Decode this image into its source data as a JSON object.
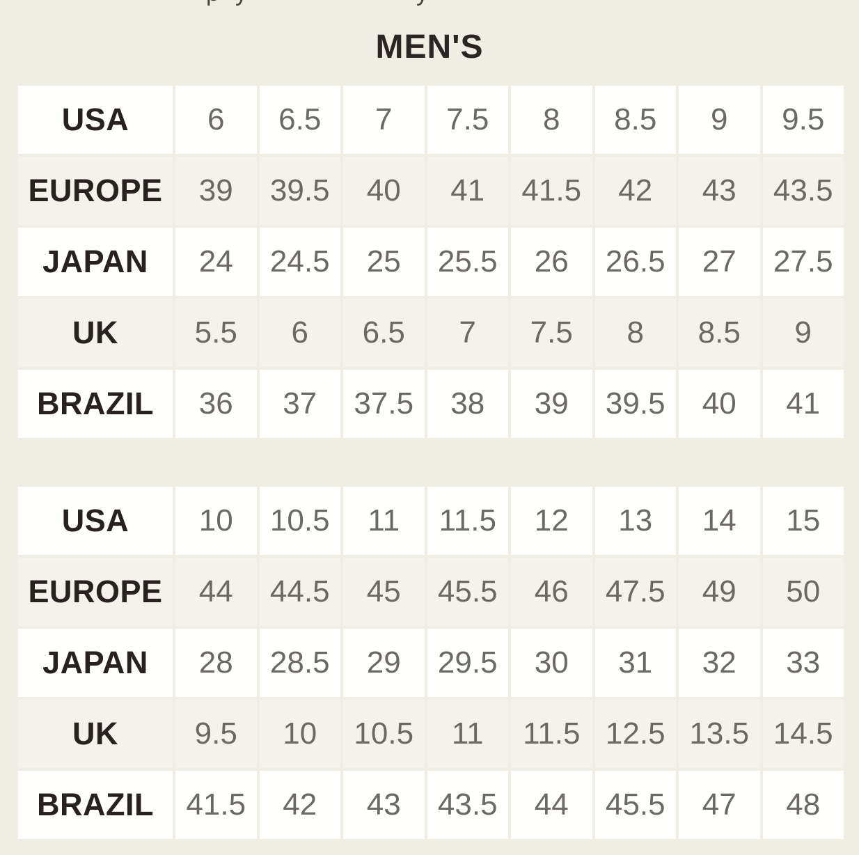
{
  "title": "MEN'S",
  "top_cropped_glyphs": [
    "p",
    "y",
    "y"
  ],
  "colors": {
    "page_background": "#f0ede4",
    "white_row": "#fffffe",
    "tint_row": "#f5f2eb",
    "label_text": "#272220",
    "value_text": "#6c6965"
  },
  "chart_data": [
    {
      "type": "table",
      "title": "MEN'S",
      "rows": [
        {
          "label": "USA",
          "values": [
            "6",
            "6.5",
            "7",
            "7.5",
            "8",
            "8.5",
            "9",
            "9.5"
          ]
        },
        {
          "label": "EUROPE",
          "values": [
            "39",
            "39.5",
            "40",
            "41",
            "41.5",
            "42",
            "43",
            "43.5"
          ]
        },
        {
          "label": "JAPAN",
          "values": [
            "24",
            "24.5",
            "25",
            "25.5",
            "26",
            "26.5",
            "27",
            "27.5"
          ]
        },
        {
          "label": "UK",
          "values": [
            "5.5",
            "6",
            "6.5",
            "7",
            "7.5",
            "8",
            "8.5",
            "9"
          ]
        },
        {
          "label": "BRAZIL",
          "values": [
            "36",
            "37",
            "37.5",
            "38",
            "39",
            "39.5",
            "40",
            "41"
          ]
        }
      ]
    },
    {
      "type": "table",
      "title": "",
      "rows": [
        {
          "label": "USA",
          "values": [
            "10",
            "10.5",
            "11",
            "11.5",
            "12",
            "13",
            "14",
            "15"
          ]
        },
        {
          "label": "EUROPE",
          "values": [
            "44",
            "44.5",
            "45",
            "45.5",
            "46",
            "47.5",
            "49",
            "50"
          ]
        },
        {
          "label": "JAPAN",
          "values": [
            "28",
            "28.5",
            "29",
            "29.5",
            "30",
            "31",
            "32",
            "33"
          ]
        },
        {
          "label": "UK",
          "values": [
            "9.5",
            "10",
            "10.5",
            "11",
            "11.5",
            "12.5",
            "13.5",
            "14.5"
          ]
        },
        {
          "label": "BRAZIL",
          "values": [
            "41.5",
            "42",
            "43",
            "43.5",
            "44",
            "45.5",
            "47",
            "48"
          ]
        }
      ]
    }
  ]
}
